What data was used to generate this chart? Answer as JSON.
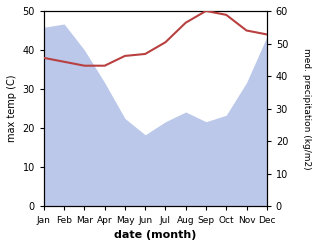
{
  "months": [
    "Jan",
    "Feb",
    "Mar",
    "Apr",
    "May",
    "Jun",
    "Jul",
    "Aug",
    "Sep",
    "Oct",
    "Nov",
    "Dec"
  ],
  "max_temp": [
    38,
    37,
    36,
    36,
    38.5,
    39,
    42,
    47,
    50,
    49,
    45,
    44
  ],
  "precipitation": [
    55,
    56,
    48,
    38,
    27,
    22,
    26,
    29,
    26,
    28,
    38,
    52
  ],
  "temp_color": "#b94040",
  "precip_fill_color": "#bbc8ea",
  "temp_ylim": [
    0,
    50
  ],
  "precip_ylim": [
    0,
    60
  ],
  "xlabel": "date (month)",
  "ylabel_left": "max temp (C)",
  "ylabel_right": "med. precipitation (kg/m2)",
  "temp_linewidth": 1.5
}
